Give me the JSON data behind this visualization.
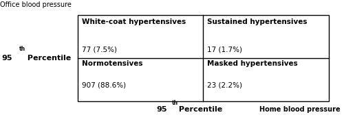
{
  "top_left_title": "White-coat hypertensives",
  "top_left_value": "77 (7.5%)",
  "top_right_title": "Sustained hypertensives",
  "top_right_value": "17 (1.7%)",
  "bottom_left_title": "Normotensives",
  "bottom_left_value": "907 (88.6%)",
  "bottom_right_title": "Masked hypertensives",
  "bottom_right_value": "23 (2.2%)",
  "y_label_main": "Office blood pressure",
  "y_label_95": "95",
  "y_label_th": "th",
  "y_label_percentile": " Percentile",
  "x_label_95": "95",
  "x_label_th": "th",
  "x_label_percentile": " Percentile",
  "x_label_main": "Home blood pressure",
  "bg_color": "#ffffff",
  "line_color": "#000000",
  "text_color": "#000000"
}
